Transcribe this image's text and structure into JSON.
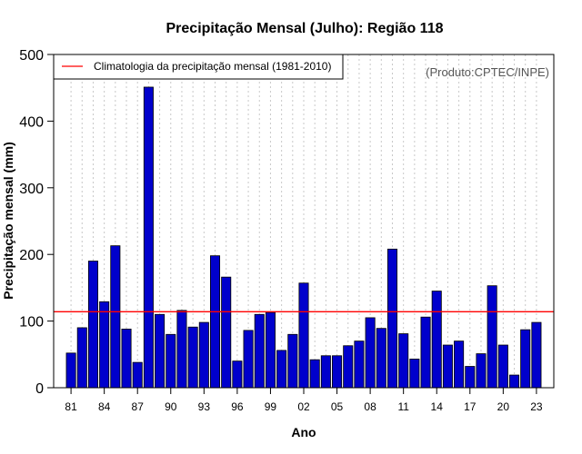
{
  "chart_data": {
    "type": "bar",
    "title": "Precipitação Mensal (Julho): Região 118",
    "xlabel": "Ano",
    "ylabel": "Precipitação mensal (mm)",
    "ylim": [
      0,
      500
    ],
    "yticks": [
      0,
      100,
      200,
      300,
      400,
      500
    ],
    "years": [
      1981,
      1982,
      1983,
      1984,
      1985,
      1986,
      1987,
      1988,
      1989,
      1990,
      1991,
      1992,
      1993,
      1994,
      1995,
      1996,
      1997,
      1998,
      1999,
      2000,
      2001,
      2002,
      2003,
      2004,
      2005,
      2006,
      2007,
      2008,
      2009,
      2010,
      2011,
      2012,
      2013,
      2014,
      2015,
      2016,
      2017,
      2018,
      2019,
      2020,
      2021,
      2022,
      2023
    ],
    "values": [
      52,
      90,
      190,
      129,
      213,
      88,
      38,
      451,
      110,
      80,
      116,
      91,
      98,
      198,
      166,
      40,
      86,
      110,
      113,
      56,
      80,
      157,
      42,
      48,
      48,
      63,
      70,
      105,
      89,
      208,
      81,
      43,
      106,
      145,
      64,
      70,
      32,
      51,
      153,
      64,
      19,
      87,
      98
    ],
    "xtick_labels": [
      "81",
      "84",
      "87",
      "90",
      "93",
      "96",
      "99",
      "02",
      "05",
      "08",
      "11",
      "14",
      "17",
      "20",
      "23"
    ],
    "xtick_years": [
      1981,
      1984,
      1987,
      1990,
      1993,
      1996,
      1999,
      2002,
      2005,
      2008,
      2011,
      2014,
      2017,
      2020,
      2023
    ],
    "climatology": {
      "label": "Climatologia da precipitação mensal (1981-2010)",
      "value": 114,
      "color": "#ff0000"
    },
    "bar_color": "#0000cc",
    "bar_edge_color": "#000000",
    "grid": "vertical dotted",
    "legend_position": "top-left",
    "credit": "(Produto:CPTEC/INPE)"
  }
}
